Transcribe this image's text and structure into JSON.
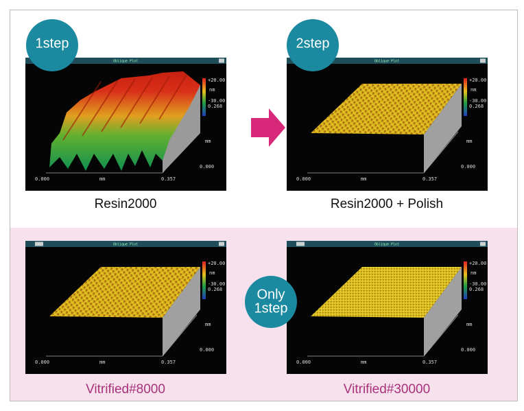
{
  "badges": [
    "1step",
    "2step",
    [
      "Only",
      "1step"
    ]
  ],
  "panels": [
    {
      "caption": "Resin2000",
      "plot": {
        "title": "Oblique Plot",
        "zmax": "+20.00",
        "zunit": "nm",
        "zmin": "-30.00",
        "yextent": "0.268",
        "yunit": "mm",
        "y0": "0.000",
        "x0": "0.000",
        "xunit": "mm",
        "xmax": "0.357"
      }
    },
    {
      "caption": "Resin2000 + Polish",
      "plot": {
        "title": "Oblique Plot",
        "zmax": "+20.00",
        "zunit": "nm",
        "zmin": "-30.00",
        "yextent": "0.268",
        "yunit": "mm",
        "y0": "0.000",
        "x0": "0.000",
        "xunit": "mm",
        "xmax": "0.357"
      }
    },
    {
      "caption": "Vitrified#8000",
      "plot": {
        "title": "Oblique Plot",
        "zmax": "+20.00",
        "zunit": "nm",
        "zmin": "-30.00",
        "yextent": "0.268",
        "yunit": "mm",
        "y0": "0.000",
        "x0": "0.000",
        "xunit": "mm",
        "xmax": "0.357"
      }
    },
    {
      "caption": "Vitrified#30000",
      "plot": {
        "title": "Oblique Plot",
        "zmax": "+20.00",
        "zunit": "nm",
        "zmin": "-30.00",
        "yextent": "0.268",
        "yunit": "mm",
        "y0": "0.000",
        "x0": "0.000",
        "xunit": "mm",
        "xmax": "0.357"
      }
    }
  ]
}
